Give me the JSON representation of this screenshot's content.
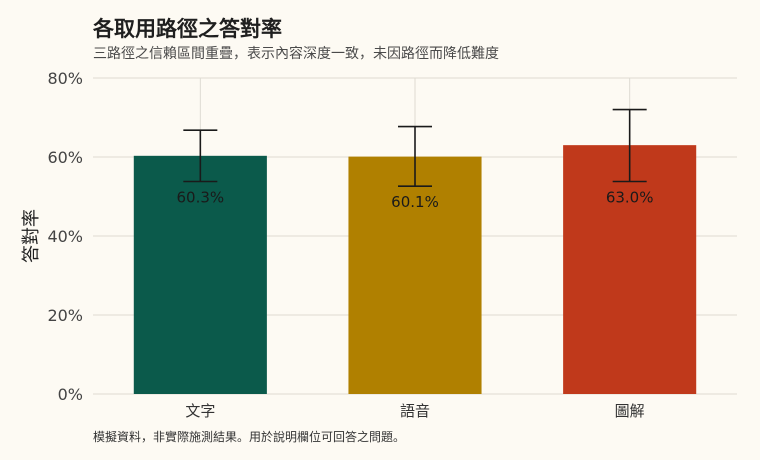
{
  "chart_data": {
    "type": "bar",
    "title": "各取用路徑之答對率",
    "subtitle": "三路徑之信賴區間重疊，表示內容深度一致，未因路徑而降低難度",
    "ylabel": "答對率",
    "xlabel": "",
    "caption": "模擬資料，非實際施測結果。用於說明欄位可回答之問題。",
    "categories": [
      "文字",
      "語音",
      "圖解"
    ],
    "values": [
      60.3,
      60.1,
      63.0
    ],
    "value_labels": [
      "60.3%",
      "60.1%",
      "63.0%"
    ],
    "error_low": [
      53.8,
      52.6,
      53.8
    ],
    "error_high": [
      66.8,
      67.7,
      72.0
    ],
    "colors": [
      "#0b5a4b",
      "#b08000",
      "#c0391b"
    ],
    "ylim": [
      0,
      80
    ],
    "yticks": [
      0,
      20,
      40,
      60,
      80
    ],
    "ytick_labels": [
      "0%",
      "20%",
      "40%",
      "60%",
      "80%"
    ],
    "grid": true,
    "legend": "none"
  }
}
